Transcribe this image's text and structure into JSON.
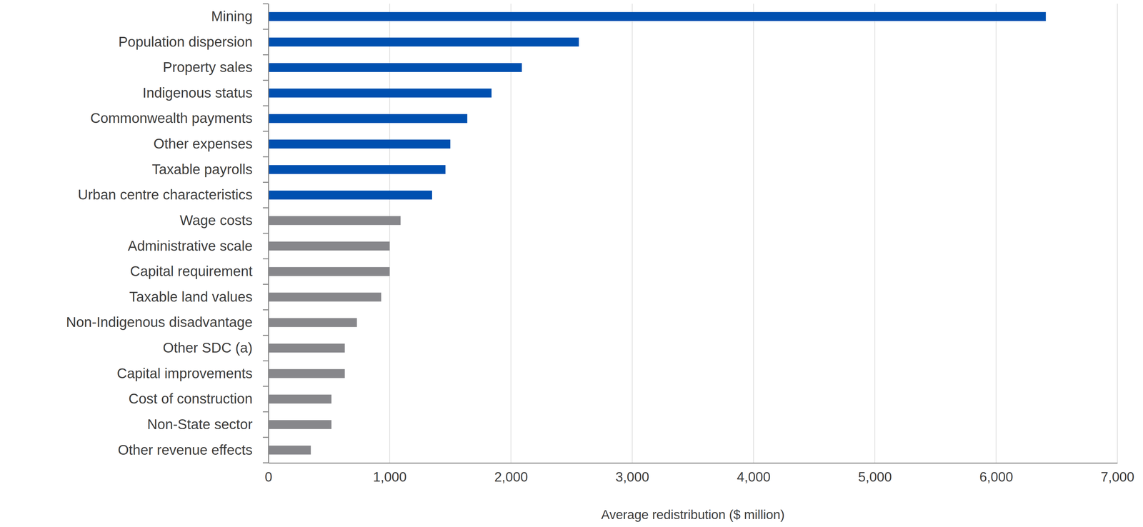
{
  "chart_data": {
    "type": "bar",
    "orientation": "horizontal",
    "categories": [
      "Mining",
      "Population dispersion",
      "Property sales",
      "Indigenous status",
      "Commonwealth payments",
      "Other expenses",
      "Taxable payrolls",
      "Urban centre characteristics",
      "Wage costs",
      "Administrative scale",
      "Capital requirement",
      "Taxable land values",
      "Non-Indigenous disadvantage",
      "Other SDC (a)",
      "Capital improvements",
      "Cost of construction",
      "Non-State sector",
      "Other revenue effects"
    ],
    "values": [
      6410,
      2560,
      2090,
      1840,
      1640,
      1500,
      1460,
      1350,
      1090,
      1000,
      1000,
      930,
      730,
      630,
      630,
      520,
      520,
      350
    ],
    "colors": [
      "#0050b0",
      "#0050b0",
      "#0050b0",
      "#0050b0",
      "#0050b0",
      "#0050b0",
      "#0050b0",
      "#0050b0",
      "#87878b",
      "#87878b",
      "#87878b",
      "#87878b",
      "#87878b",
      "#87878b",
      "#87878b",
      "#87878b",
      "#87878b",
      "#87878b"
    ],
    "xlabel": "Average redistribution ($ million)",
    "xlim": [
      0,
      7000
    ],
    "xticks": [
      0,
      {
        "value": 1000,
        "label": "1,000"
      },
      {
        "value": 2000,
        "label": "2,000"
      },
      {
        "value": 3000,
        "label": "3,000"
      },
      {
        "value": 4000,
        "label": "4,000"
      },
      {
        "value": 5000,
        "label": "5,000"
      },
      {
        "value": 6000,
        "label": "6,000"
      },
      {
        "value": 7000,
        "label": "7,000"
      }
    ],
    "grid": true
  }
}
